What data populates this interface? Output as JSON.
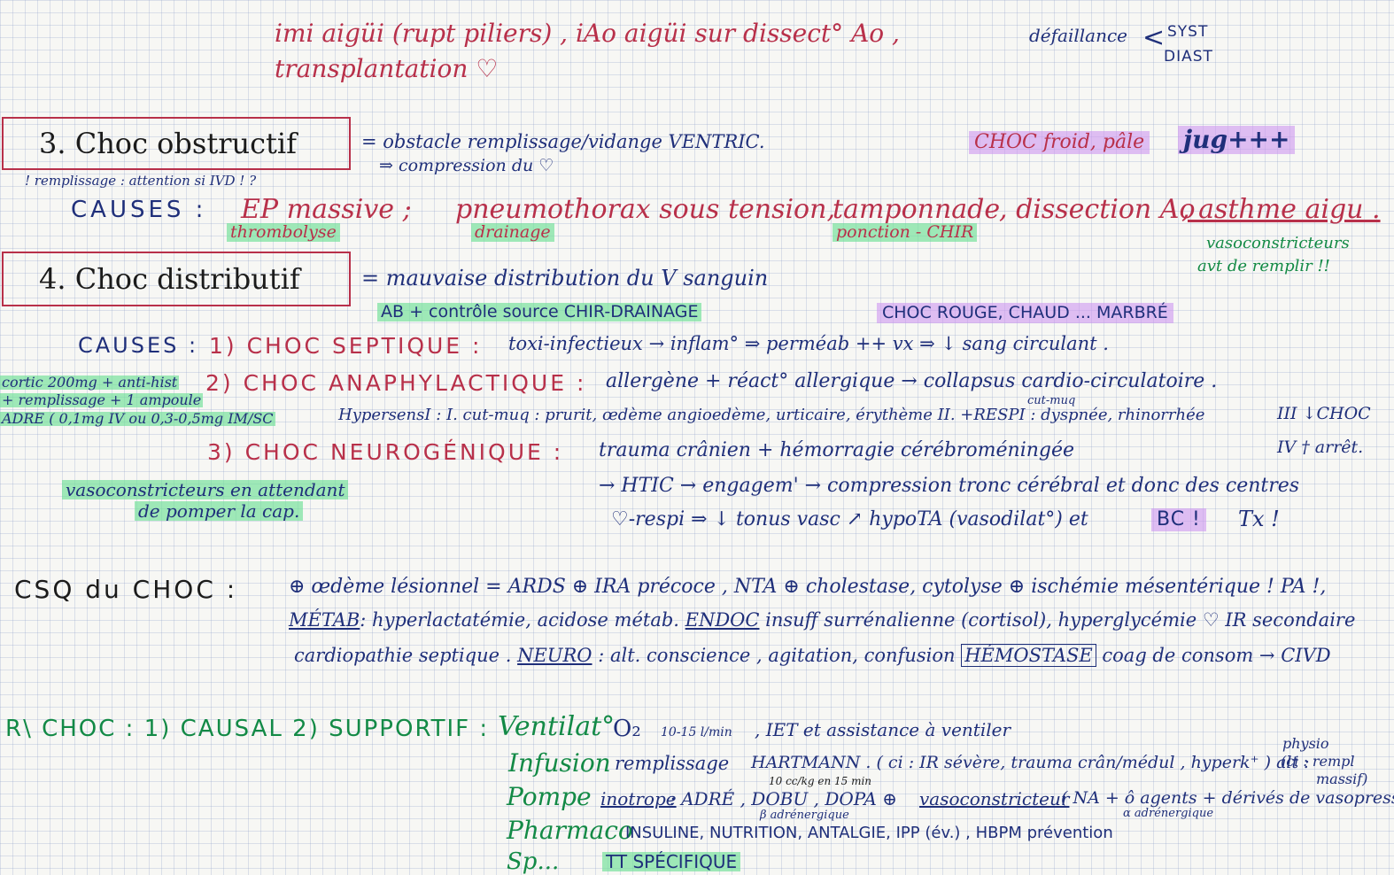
{
  "top": {
    "line1": "imi aigüi (rupt piliers) , iAo aigüi sur dissect° Ao ,",
    "line2": "transplantation ♡",
    "defaillance": "défaillance",
    "syst": "SYST",
    "diast": "DIAST"
  },
  "s3": {
    "title": "3.  Choc obstructif",
    "def1": "= obstacle remplissage/vidange VENTRIC.",
    "def2": "⇒ compression du ♡",
    "hl_choc": "CHOC froid, pâle",
    "hl_jug": "jug+++",
    "note": "! remplissage : attention si IVD ! ?",
    "causes_label": "CAUSES :",
    "c_ep": "EP massive ;",
    "c_ep_sub": "thrombolyse",
    "c_pneumo": "pneumothorax sous tension,",
    "c_pneumo_sub": "drainage",
    "c_tampo": "tamponnade",
    "c_tampo_sub": "ponction - CHIR",
    "c_dissect": ", dissection Ao",
    "c_asthme": ", asthme aigu .",
    "vaso1": "vasoconstricteurs",
    "vaso2": "avt de remplir !!"
  },
  "s4": {
    "title": "4.  Choc distributif",
    "def": "= mauvaise distribution du V sanguin",
    "ab": "AB + contrôle source CHIR-DRAINAGE",
    "hl_choc": "CHOC ROUGE, CHAUD ... MARBRÉ",
    "causes_label": "CAUSES :",
    "septique_label": "1) CHOC  SEPTIQUE :",
    "septique_text": "toxi-infectieux → inflam° ⇒ perméab ++ vx ⇒ ↓ sang circulant .",
    "side1": "cortic 200mg + anti-hist",
    "side2": "+ remplissage + 1 ampoule",
    "side3": "ADRE ( 0,1mg IV ou 0,3-0,5mg IM/SC",
    "anaph_label": "2) CHOC  ANAPHYLACTIQUE :",
    "anaph_text": "allergène + réact° allergique → collapsus cardio-circulatoire .",
    "hyper": "HypersensI : I. cut-muq : prurit, œdème angioedème, urticaire, érythème  II. +RESPI : dyspnée, rhinorrhée",
    "cutmuq": "cut-muq",
    "grade3": "III ↓CHOC",
    "grade4": "IV † arrêt.",
    "neuro_label": "3) CHOC  NEUROGÉNIQUE :",
    "neuro1": "trauma crânien + hémorragie cérébroméningée",
    "neuro2": "→ HTIC → engagem' → compression tronc cérébral et donc des centres",
    "neuro3": "♡-respi  ⇒ ↓ tonus vasc ↗ hypoTA (vasodilat°)  et",
    "bc": "BC !",
    "tx": "Tx !",
    "vasoc1": "vasoconstricteurs en attendant",
    "vasoc2": "de pomper la cap."
  },
  "csq": {
    "label": "CSQ  du  CHOC :",
    "l1": "⊕ œdème lésionnel = ARDS    ⊕ IRA précoce , NTA  ⊕ cholestase, cytolyse  ⊕ ischémie mésentérique ! PA !,",
    "metab": "MÉTAB",
    "l2a": ": hyperlactatémie, acidose métab.  ",
    "endoc": "ENDOC",
    "l2b": " insuff surrénalienne (cortisol), hyperglycémie  ♡ IR secondaire",
    "l3a": "cardiopathie septique .  ",
    "neuro": "NEURO",
    "l3b": " : alt. conscience , agitation, confusion  ",
    "hemo": "HÉMOSTASE",
    "l3c": " coag de consom → CIVD"
  },
  "rchoc": {
    "label": "R\\ CHOC :  1) CAUSAL    2) SUPPORTIF :",
    "ventilat": "Ventilat°",
    "o2": "O₂",
    "o2rate": "10-15 l/min",
    "iet": ", IET et assistance à ventiler",
    "infusion": "Infusion",
    "remplissage": "remplissage",
    "hartmann": "HARTMANN . ( ci : IR sévère, trauma crân/médul , hyperk⁺ )  alt :",
    "hart_dose": "10 cc/kg en 15 min",
    "physio1": "physio",
    "physio2": "(ci : rempl",
    "physio3": "massif)",
    "pompe": "Pompe",
    "inotrope": "inotrope",
    "pompe_text": ": ADRÉ , DOBU , DOPA  ⊕",
    "vasoconstricteur": "vasoconstricteur",
    "pompe_text2": " ( NA + ô agents   + dérivés de vasopressine)",
    "badre1": "β adrénergique",
    "badre2": "α adrénergique",
    "pharmaco": "Pharmaco",
    "pharmaco_text": "INSULINE, NUTRITION, ANTALGIE, IPP (év.) , HBPM prévention",
    "s_word": "Sp...",
    "tt": "TT SPÉCIFIQUE"
  }
}
